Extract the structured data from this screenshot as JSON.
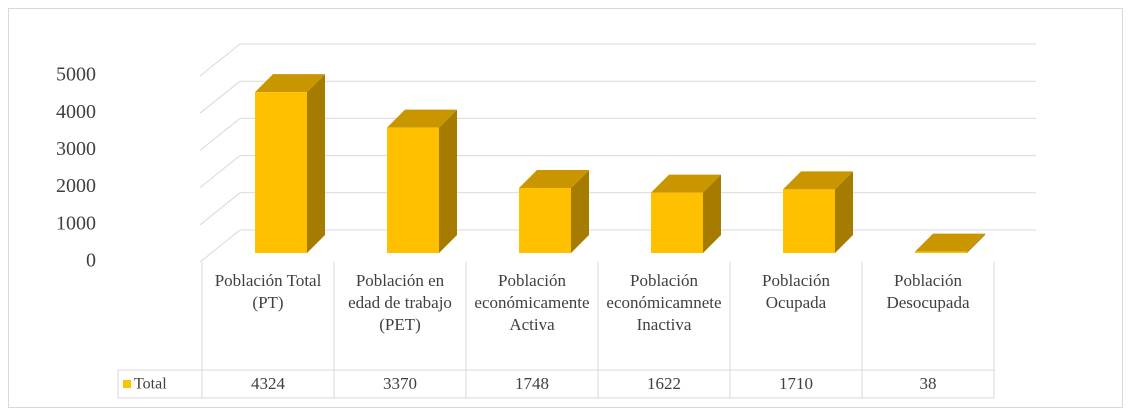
{
  "chart_data": {
    "type": "bar3d",
    "categories": [
      "Población Total (PT)",
      "Población en edad de trabajo (PET)",
      "Población económicamente Activa",
      "Población económicamnete Inactiva",
      "Población Ocupada",
      "Población Desocupada"
    ],
    "series": [
      {
        "name": "Total",
        "color": "#FFC000",
        "values": [
          4324,
          3370,
          1748,
          1622,
          1710,
          38
        ]
      }
    ],
    "ylim": [
      0,
      5000
    ],
    "yticks": [
      0,
      1000,
      2000,
      3000,
      4000,
      5000
    ],
    "grid": true
  }
}
